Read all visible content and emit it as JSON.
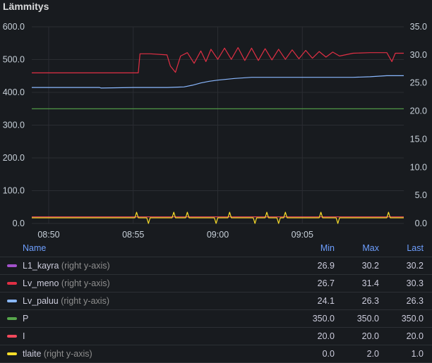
{
  "panel": {
    "title": "Lämmitys"
  },
  "chart_data": {
    "type": "line",
    "title": "Lämmitys",
    "x_ticks": [
      "08:50",
      "08:55",
      "09:00",
      "09:05"
    ],
    "x_range_minutes": [
      "08:49",
      "09:11"
    ],
    "left_axis": {
      "ticks": [
        "0.0",
        "100.0",
        "200.0",
        "300.0",
        "400.0",
        "500.0",
        "600.0"
      ],
      "ylim": [
        0,
        600
      ]
    },
    "right_axis": {
      "ticks": [
        "0.0",
        "5.0",
        "10.0",
        "15.0",
        "20.0",
        "25.0",
        "30.0",
        "35.0"
      ],
      "ylim": [
        0,
        35
      ]
    },
    "grid": true,
    "legend_placement": "bottom",
    "series": [
      {
        "name": "L1_kayra",
        "axis": "right",
        "color": "#a352cc",
        "min": "26.9",
        "max": "30.2",
        "last": "30.2"
      },
      {
        "name": "Lv_meno",
        "axis": "right",
        "color": "#e02f44",
        "min": "26.7",
        "max": "31.4",
        "last": "30.3",
        "points": [
          [
            "08:49",
            26.8
          ],
          [
            "08:53",
            26.8
          ],
          [
            "08:54",
            26.8
          ],
          [
            "08:55.3",
            26.8
          ],
          [
            "08:55.4",
            30.2
          ],
          [
            "08:56",
            30.2
          ],
          [
            "08:57",
            30.0
          ],
          [
            "08:57.2",
            28.0
          ],
          [
            "08:57.5",
            26.9
          ],
          [
            "08:57.8",
            29.8
          ],
          [
            "08:58.2",
            30.4
          ],
          [
            "08:58.6",
            28.5
          ],
          [
            "08:59",
            30.7
          ],
          [
            "08:59.3",
            28.8
          ],
          [
            "08:59.6",
            31.0
          ],
          [
            "09:00",
            29.2
          ],
          [
            "09:00.4",
            31.2
          ],
          [
            "09:00.8",
            29.2
          ],
          [
            "09:01.2",
            31.3
          ],
          [
            "09:01.6",
            29.0
          ],
          [
            "09:02",
            31.2
          ],
          [
            "09:02.4",
            29.0
          ],
          [
            "09:02.8",
            31.1
          ],
          [
            "09:03.2",
            29.1
          ],
          [
            "09:03.6",
            31.0
          ],
          [
            "09:04",
            29.2
          ],
          [
            "09:04.4",
            30.9
          ],
          [
            "09:04.8",
            29.3
          ],
          [
            "09:05.2",
            30.8
          ],
          [
            "09:05.6",
            29.4
          ],
          [
            "09:06",
            30.6
          ],
          [
            "09:06.4",
            29.6
          ],
          [
            "09:06.8",
            30.5
          ],
          [
            "09:07.2",
            29.8
          ],
          [
            "09:08",
            30.3
          ],
          [
            "09:09",
            30.4
          ],
          [
            "09:10",
            30.4
          ],
          [
            "09:10.3",
            28.8
          ],
          [
            "09:10.5",
            30.3
          ],
          [
            "09:11",
            30.3
          ]
        ]
      },
      {
        "name": "Lv_paluu",
        "axis": "right",
        "color": "#8ab8ff",
        "min": "24.1",
        "max": "26.3",
        "last": "26.3",
        "points": [
          [
            "08:49",
            24.2
          ],
          [
            "08:53",
            24.2
          ],
          [
            "08:53.1",
            24.1
          ],
          [
            "08:55",
            24.2
          ],
          [
            "08:56",
            24.2
          ],
          [
            "08:57",
            24.2
          ],
          [
            "08:58",
            24.3
          ],
          [
            "08:58.5",
            24.6
          ],
          [
            "08:59",
            25.0
          ],
          [
            "08:59.5",
            25.3
          ],
          [
            "09:00",
            25.5
          ],
          [
            "09:01",
            25.8
          ],
          [
            "09:02",
            26.0
          ],
          [
            "09:03",
            26.0
          ],
          [
            "09:04",
            26.0
          ],
          [
            "09:05",
            26.0
          ],
          [
            "09:06",
            26.0
          ],
          [
            "09:07",
            26.0
          ],
          [
            "09:08",
            26.0
          ],
          [
            "09:09",
            26.1
          ],
          [
            "09:10",
            26.3
          ],
          [
            "09:11",
            26.3
          ]
        ]
      },
      {
        "name": "P",
        "axis": "left",
        "color": "#56a64b",
        "min": "350.0",
        "max": "350.0",
        "last": "350.0",
        "points": [
          [
            "08:49",
            350
          ],
          [
            "09:11",
            350
          ]
        ]
      },
      {
        "name": "I",
        "axis": "left",
        "color": "#f2495c",
        "min": "20.0",
        "max": "20.0",
        "last": "20.0",
        "points": [
          [
            "08:49",
            20
          ],
          [
            "09:11",
            20
          ]
        ]
      },
      {
        "name": "tlaite",
        "axis": "right",
        "color": "#fade2a",
        "min": "0.0",
        "max": "2.0",
        "last": "1.0",
        "points": [
          [
            "08:49",
            1
          ],
          [
            "08:55.1",
            1
          ],
          [
            "08:55.2",
            2
          ],
          [
            "08:55.3",
            1
          ],
          [
            "08:55.8",
            1
          ],
          [
            "08:55.9",
            0
          ],
          [
            "08:56",
            1
          ],
          [
            "08:57.3",
            1
          ],
          [
            "08:57.4",
            2
          ],
          [
            "08:57.5",
            1
          ],
          [
            "08:58.1",
            1
          ],
          [
            "08:58.2",
            2
          ],
          [
            "08:58.3",
            1
          ],
          [
            "08:59.8",
            1
          ],
          [
            "08:59.9",
            0
          ],
          [
            "09:00",
            1
          ],
          [
            "09:00.6",
            1
          ],
          [
            "09:00.7",
            2
          ],
          [
            "09:00.8",
            1
          ],
          [
            "09:02.1",
            1
          ],
          [
            "09:02.2",
            0
          ],
          [
            "09:02.3",
            1
          ],
          [
            "09:02.8",
            1
          ],
          [
            "09:02.9",
            2
          ],
          [
            "09:03",
            1
          ],
          [
            "09:03.5",
            1
          ],
          [
            "09:03.6",
            0
          ],
          [
            "09:03.7",
            1
          ],
          [
            "09:03.9",
            1
          ],
          [
            "09:04",
            2
          ],
          [
            "09:04.1",
            1
          ],
          [
            "09:06",
            1
          ],
          [
            "09:06.1",
            2
          ],
          [
            "09:06.2",
            1
          ],
          [
            "09:07",
            1
          ],
          [
            "09:07.1",
            0
          ],
          [
            "09:07.2",
            1
          ],
          [
            "09:10",
            1
          ],
          [
            "09:10.1",
            2
          ],
          [
            "09:10.2",
            1
          ],
          [
            "09:11",
            1
          ]
        ]
      }
    ]
  },
  "legend": {
    "headers": {
      "name": "Name",
      "min": "Min",
      "max": "Max",
      "last": "Last"
    },
    "right_axis_note": "(right y-axis)"
  }
}
